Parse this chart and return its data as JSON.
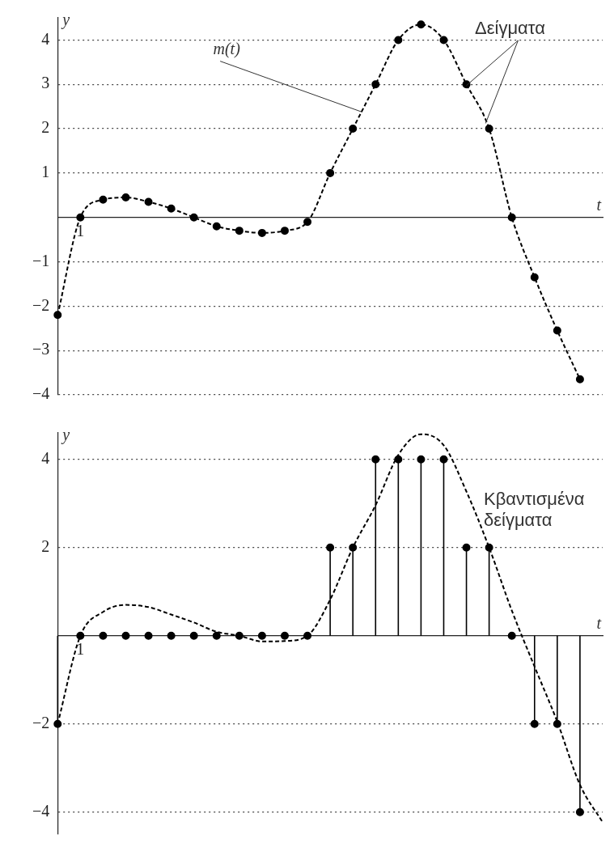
{
  "chart_data": [
    {
      "type": "line",
      "categories": [
        null,
        "1",
        null,
        null,
        null,
        null,
        null,
        null,
        null,
        null,
        null,
        null,
        null,
        null,
        null,
        null,
        null,
        null,
        null,
        null,
        null,
        null,
        null,
        null,
        null
      ],
      "series": [
        {
          "color": "#000000",
          "values": [
            -2.2,
            0,
            0.4,
            0.45,
            0.35,
            0.2,
            0,
            -0.2,
            -0.3,
            -0.35,
            -0.3,
            -0.1,
            1,
            2,
            3,
            4,
            4.35,
            4,
            3,
            2,
            0,
            -1.35,
            -2.55,
            -3.65,
            null
          ]
        }
      ],
      "marker": "circle",
      "line_style": "dashed",
      "ylim": [
        -4,
        4.5
      ],
      "yticks": [
        -4,
        -3,
        -2,
        -1,
        {
          "value": 0,
          "label": null
        },
        1,
        2,
        3,
        4
      ],
      "xlabel": "t",
      "ylabel": "y",
      "grid": "y",
      "annotations": [
        "m(t)",
        "Δείγματα"
      ]
    },
    {
      "type": "lollipop",
      "categories": [
        null,
        "1",
        null,
        null,
        null,
        null,
        null,
        null,
        null,
        null,
        null,
        null,
        null,
        null,
        null,
        null,
        null,
        null,
        null,
        null,
        null,
        null,
        null,
        null,
        null
      ],
      "series": [
        {
          "type": "line",
          "color": "#000000",
          "marker": "none",
          "line_style": "dashed",
          "values": [
            -2,
            0,
            0.54,
            0.7,
            0.65,
            0.48,
            0.3,
            0.09,
            0,
            -0.13,
            -0.12,
            0,
            0.82,
            2,
            2.96,
            4.1,
            4.57,
            4.32,
            3.27,
            2,
            0.57,
            -0.7,
            -1.95,
            -3.38,
            -4.23
          ]
        },
        {
          "color": "#000000",
          "marker": "circle",
          "values": [
            -2,
            0,
            0,
            0,
            0,
            0,
            0,
            0,
            0,
            0,
            0,
            0,
            2,
            2,
            4,
            4,
            4,
            4,
            2,
            2,
            0,
            -2,
            -2,
            -4,
            null
          ]
        }
      ],
      "ylim": [
        -4.5,
        4.6
      ],
      "yticks": [
        -4,
        -2,
        {
          "value": 0,
          "label": null
        },
        2,
        4
      ],
      "xlabel": "t",
      "ylabel": "y",
      "grid": "y",
      "annotations": [
        "Κβαντισμένα δείγματα"
      ]
    }
  ]
}
